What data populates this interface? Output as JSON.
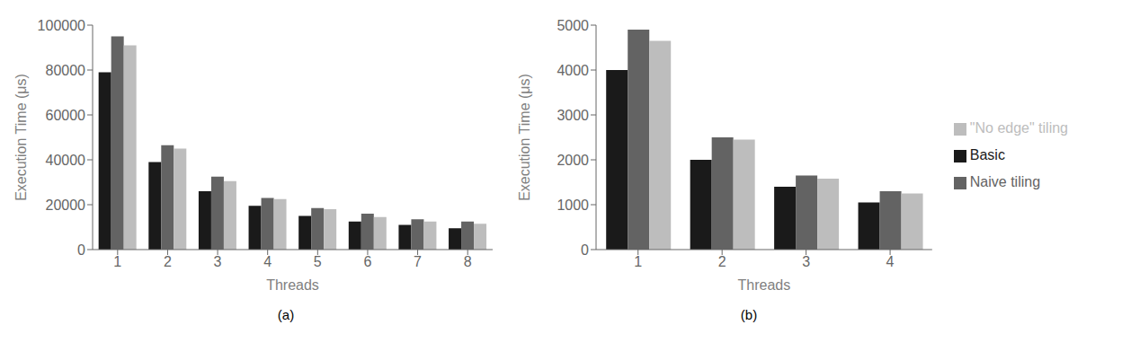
{
  "chart_data": [
    {
      "type": "bar",
      "subtitle": "(a)",
      "xlabel": "Threads",
      "ylabel": "Execution Time (μs)",
      "categories": [
        "1",
        "2",
        "3",
        "4",
        "5",
        "6",
        "7",
        "8"
      ],
      "series": [
        {
          "name": "Basic",
          "color": "#1a1a1a",
          "values": [
            79000,
            39000,
            26000,
            19500,
            15000,
            12500,
            11000,
            9500
          ]
        },
        {
          "name": "Naive tiling",
          "color": "#636363",
          "values": [
            95000,
            46500,
            32500,
            23000,
            18500,
            16000,
            13500,
            12500
          ]
        },
        {
          "name": "\"No edge\" tiling",
          "color": "#bdbdbd",
          "values": [
            91000,
            45000,
            30500,
            22500,
            18000,
            14500,
            12500,
            11500
          ]
        }
      ],
      "ylim": [
        0,
        100000
      ],
      "yticks": [
        0,
        20000,
        40000,
        60000,
        80000,
        100000
      ],
      "grid": false
    },
    {
      "type": "bar",
      "subtitle": "(b)",
      "xlabel": "Threads",
      "ylabel": "Execution Time (μs)",
      "categories": [
        "1",
        "2",
        "3",
        "4"
      ],
      "series": [
        {
          "name": "Basic",
          "color": "#1a1a1a",
          "values": [
            4000,
            2000,
            1400,
            1050
          ]
        },
        {
          "name": "Naive tiling",
          "color": "#636363",
          "values": [
            4900,
            2500,
            1650,
            1300
          ]
        },
        {
          "name": "\"No edge\" tiling",
          "color": "#bdbdbd",
          "values": [
            4650,
            2450,
            1580,
            1250
          ]
        }
      ],
      "ylim": [
        0,
        5000
      ],
      "yticks": [
        0,
        1000,
        2000,
        3000,
        4000,
        5000
      ],
      "grid": false,
      "legend": "right"
    }
  ]
}
